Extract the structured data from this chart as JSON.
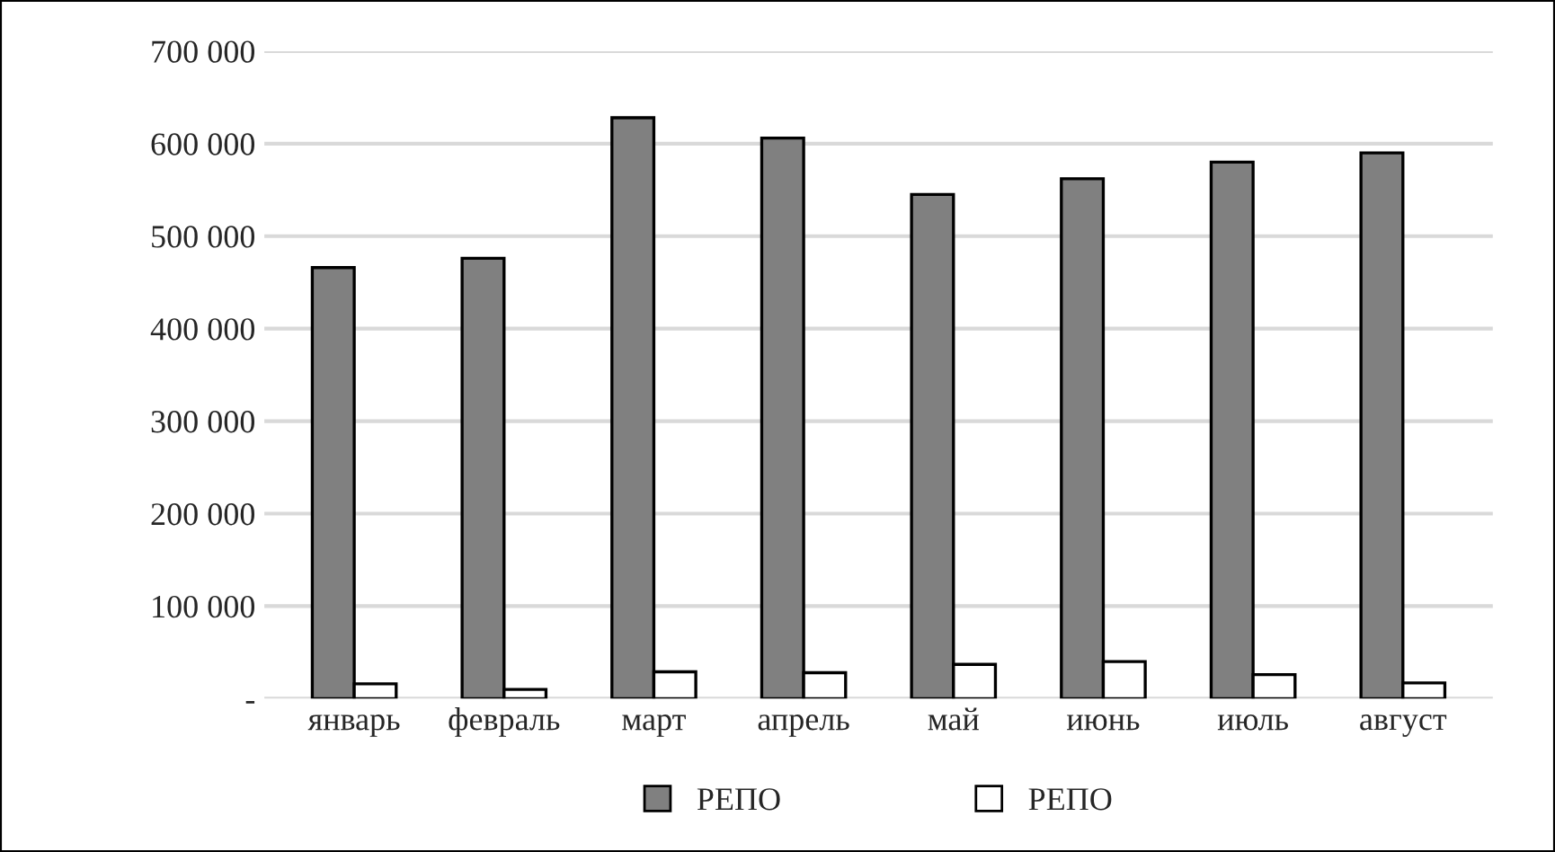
{
  "chart_data": {
    "type": "bar",
    "categories": [
      "январь",
      "февраль",
      "март",
      "апрель",
      "май",
      "июнь",
      "июль",
      "август"
    ],
    "series": [
      {
        "name": "РЕПО",
        "color": "#808080",
        "values": [
          466000,
          476000,
          628000,
          606000,
          545000,
          562000,
          580000,
          590000
        ]
      },
      {
        "name": "РЕПО",
        "color": "#ffffff",
        "values": [
          16000,
          10000,
          29000,
          28000,
          37000,
          40000,
          26000,
          17000
        ]
      }
    ],
    "ylim": [
      0,
      700000
    ],
    "yticks": [
      {
        "value": 0,
        "label": "-"
      },
      {
        "value": 100000,
        "label": "100 000"
      },
      {
        "value": 200000,
        "label": "200 000"
      },
      {
        "value": 300000,
        "label": "300 000"
      },
      {
        "value": 400000,
        "label": "400 000"
      },
      {
        "value": 500000,
        "label": "500 000"
      },
      {
        "value": 600000,
        "label": "600 000"
      },
      {
        "value": 700000,
        "label": "700 000"
      }
    ],
    "grid": "y",
    "legend": "bottom"
  }
}
